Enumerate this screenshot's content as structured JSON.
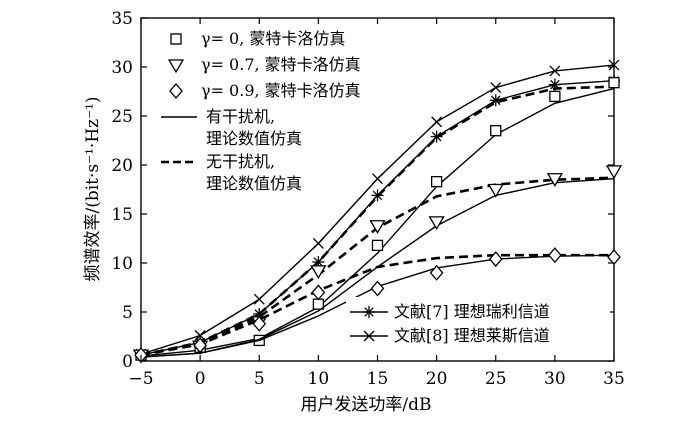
{
  "chart_data": {
    "type": "line",
    "xlabel": "用户发送功率/dB",
    "ylabel": "频谱效率/(bit·s⁻¹·Hz⁻¹)",
    "xlim": [
      -5,
      35
    ],
    "ylim": [
      0,
      35
    ],
    "xticks": [
      -5,
      0,
      5,
      10,
      15,
      20,
      25,
      30,
      35
    ],
    "yticks": [
      0,
      5,
      10,
      15,
      20,
      25,
      30,
      35
    ],
    "grid": false,
    "legend_top": [
      {
        "text": "γ= 0, 蒙特卡洛仿真",
        "marker": "square"
      },
      {
        "text": "γ= 0.7, 蒙特卡洛仿真",
        "marker": "triangle-down"
      },
      {
        "text": "γ= 0.9, 蒙特卡洛仿真",
        "marker": "diamond"
      },
      {
        "text": "有干扰机,\n理论数值仿真",
        "line": "solid"
      },
      {
        "text": "无干扰机,\n理论数值仿真",
        "line": "dashed"
      }
    ],
    "legend_bottom": [
      {
        "text": "文献[7] 理想瑞利信道",
        "marker": "asterisk",
        "line": "solid"
      },
      {
        "text": "文献[8] 理想莱斯信道",
        "marker": "x",
        "line": "solid"
      }
    ],
    "x": [
      -5,
      0,
      5,
      10,
      15,
      20,
      25,
      30,
      35
    ],
    "series": [
      {
        "line": "solid",
        "marker": "x",
        "values": [
          0.7,
          2.6,
          6.3,
          12.0,
          18.6,
          24.4,
          27.9,
          29.6,
          30.2
        ]
      },
      {
        "line": "solid",
        "marker": "asterisk",
        "values": [
          0.6,
          1.9,
          4.8,
          10.1,
          16.9,
          22.9,
          26.6,
          28.2,
          28.6
        ]
      },
      {
        "line": "dashed",
        "marker": "none",
        "values": [
          0.6,
          1.9,
          4.8,
          10.1,
          16.8,
          22.8,
          26.4,
          27.8,
          28.0
        ]
      },
      {
        "line": "solid",
        "marker": "none",
        "values": [
          0.5,
          1.1,
          2.3,
          5.5,
          11.0,
          17.8,
          23.1,
          26.3,
          27.8
        ]
      },
      {
        "line": "none",
        "marker": "square",
        "values": [
          0.6,
          1.4,
          2.1,
          5.8,
          11.8,
          18.3,
          23.5,
          27.0,
          28.4
        ]
      },
      {
        "line": "dashed",
        "marker": "none",
        "values": [
          0.6,
          1.8,
          4.5,
          8.8,
          13.6,
          16.8,
          18.0,
          18.5,
          18.7
        ]
      },
      {
        "line": "solid",
        "marker": "none",
        "values": [
          0.4,
          0.8,
          2.2,
          5.1,
          9.6,
          13.8,
          16.9,
          18.2,
          18.6
        ]
      },
      {
        "line": "none",
        "marker": "triangle-down",
        "values": [
          0.6,
          1.5,
          4.0,
          9.2,
          13.8,
          14.2,
          17.5,
          18.6,
          19.4
        ]
      },
      {
        "line": "dashed",
        "marker": "none",
        "values": [
          0.6,
          1.7,
          4.2,
          7.2,
          9.6,
          10.5,
          10.8,
          10.8,
          10.8
        ]
      },
      {
        "line": "solid",
        "marker": "none",
        "values": [
          0.4,
          0.8,
          2.1,
          4.6,
          7.6,
          9.5,
          10.4,
          10.7,
          10.8
        ]
      },
      {
        "line": "none",
        "marker": "diamond",
        "values": [
          0.6,
          1.6,
          3.8,
          7.0,
          7.4,
          9.0,
          10.4,
          10.8,
          10.6
        ]
      }
    ]
  }
}
